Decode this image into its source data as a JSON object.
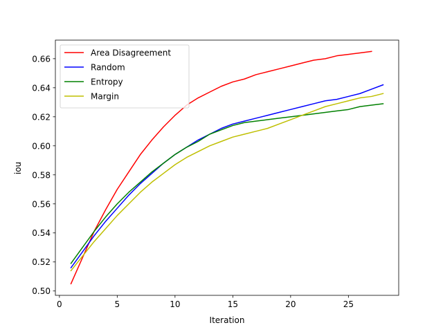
{
  "chart_data": {
    "type": "line",
    "title": "",
    "xlabel": "Iteration",
    "ylabel": "iou",
    "xlim": [
      -0.35,
      29.35
    ],
    "ylim": [
      0.497,
      0.6728
    ],
    "xticks": [
      0,
      5,
      10,
      15,
      20,
      25
    ],
    "yticks": [
      0.5,
      0.52,
      0.54,
      0.56,
      0.58,
      0.6,
      0.62,
      0.64,
      0.66
    ],
    "ytick_labels": [
      "0.50",
      "0.52",
      "0.54",
      "0.56",
      "0.58",
      "0.60",
      "0.62",
      "0.64",
      "0.66"
    ],
    "grid": false,
    "legend_position": "upper-left",
    "series": [
      {
        "name": "Area Disagreement",
        "color": "#ff0000",
        "x": [
          1,
          2,
          3,
          4,
          5,
          6,
          7,
          8,
          9,
          10,
          11,
          12,
          13,
          14,
          15,
          16,
          17,
          18,
          19,
          20,
          21,
          22,
          23,
          24,
          25,
          26,
          27
        ],
        "values": [
          0.505,
          0.523,
          0.541,
          0.556,
          0.57,
          0.582,
          0.594,
          0.604,
          0.613,
          0.621,
          0.628,
          0.633,
          0.637,
          0.641,
          0.644,
          0.646,
          0.649,
          0.651,
          0.653,
          0.655,
          0.657,
          0.659,
          0.66,
          0.662,
          0.663,
          0.664,
          0.665
        ]
      },
      {
        "name": "Random",
        "color": "#0000ff",
        "x": [
          1,
          2,
          3,
          4,
          5,
          6,
          7,
          8,
          9,
          10,
          11,
          12,
          13,
          14,
          15,
          16,
          17,
          18,
          19,
          20,
          21,
          22,
          23,
          24,
          25,
          26,
          27,
          28
        ],
        "values": [
          0.516,
          0.527,
          0.538,
          0.548,
          0.557,
          0.566,
          0.574,
          0.581,
          0.588,
          0.594,
          0.599,
          0.604,
          0.608,
          0.612,
          0.615,
          0.617,
          0.619,
          0.621,
          0.623,
          0.625,
          0.627,
          0.629,
          0.631,
          0.632,
          0.634,
          0.636,
          0.639,
          0.642
        ]
      },
      {
        "name": "Entropy",
        "color": "#008000",
        "x": [
          1,
          2,
          3,
          4,
          5,
          6,
          7,
          8,
          9,
          10,
          11,
          12,
          13,
          14,
          15,
          16,
          17,
          18,
          19,
          20,
          21,
          22,
          23,
          24,
          25,
          26,
          27,
          28
        ],
        "values": [
          0.519,
          0.53,
          0.541,
          0.551,
          0.56,
          0.568,
          0.575,
          0.582,
          0.588,
          0.594,
          0.599,
          0.603,
          0.608,
          0.611,
          0.614,
          0.616,
          0.617,
          0.618,
          0.619,
          0.62,
          0.621,
          0.622,
          0.623,
          0.624,
          0.625,
          0.627,
          0.628,
          0.629
        ]
      },
      {
        "name": "Margin",
        "color": "#bfbf00",
        "x": [
          1,
          2,
          3,
          4,
          5,
          6,
          7,
          8,
          9,
          10,
          11,
          12,
          13,
          14,
          15,
          16,
          17,
          18,
          19,
          20,
          21,
          22,
          23,
          24,
          25,
          26,
          27,
          28
        ],
        "values": [
          0.514,
          0.524,
          0.534,
          0.543,
          0.552,
          0.56,
          0.568,
          0.575,
          0.581,
          0.587,
          0.592,
          0.596,
          0.6,
          0.603,
          0.606,
          0.608,
          0.61,
          0.612,
          0.615,
          0.618,
          0.621,
          0.624,
          0.627,
          0.629,
          0.631,
          0.633,
          0.634,
          0.636
        ]
      }
    ]
  }
}
